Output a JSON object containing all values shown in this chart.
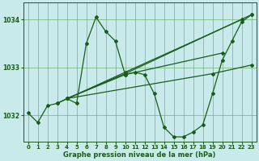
{
  "background_color": "#c8eaea",
  "plot_bg_color": "#c8eaea",
  "grid_color": "#6db86d",
  "line_color": "#1a5c1a",
  "xlabel": "Graphe pression niveau de la mer (hPa)",
  "ylim": [
    1031.45,
    1034.35
  ],
  "xlim": [
    -0.5,
    23.5
  ],
  "xticks": [
    0,
    1,
    2,
    3,
    4,
    5,
    6,
    7,
    8,
    9,
    10,
    11,
    12,
    13,
    14,
    15,
    16,
    17,
    18,
    19,
    20,
    21,
    22,
    23
  ],
  "yticks": [
    1032,
    1033,
    1034
  ],
  "main_series_x": [
    0,
    1,
    2,
    3,
    4,
    5,
    6,
    7,
    8,
    9,
    10,
    11,
    12,
    13,
    14,
    15,
    16,
    17,
    18,
    19,
    20,
    21,
    22,
    23
  ],
  "main_series_y": [
    1032.05,
    1031.85,
    1032.2,
    1032.25,
    1032.35,
    1032.25,
    1033.5,
    1034.05,
    1033.75,
    1033.55,
    1032.85,
    1032.9,
    1032.85,
    1032.45,
    1031.75,
    1031.55,
    1031.55,
    1031.65,
    1031.8,
    1032.45,
    1033.15,
    1033.55,
    1033.95,
    1034.1
  ],
  "forecast_lines": [
    {
      "x": [
        3,
        10,
        22
      ],
      "y": [
        1032.25,
        1032.9,
        1034.0
      ]
    },
    {
      "x": [
        4,
        10,
        23
      ],
      "y": [
        1032.35,
        1032.87,
        1034.1
      ]
    },
    {
      "x": [
        4,
        10,
        20
      ],
      "y": [
        1032.35,
        1032.85,
        1033.3
      ]
    },
    {
      "x": [
        4,
        19,
        23
      ],
      "y": [
        1032.35,
        1032.87,
        1033.05
      ]
    }
  ]
}
